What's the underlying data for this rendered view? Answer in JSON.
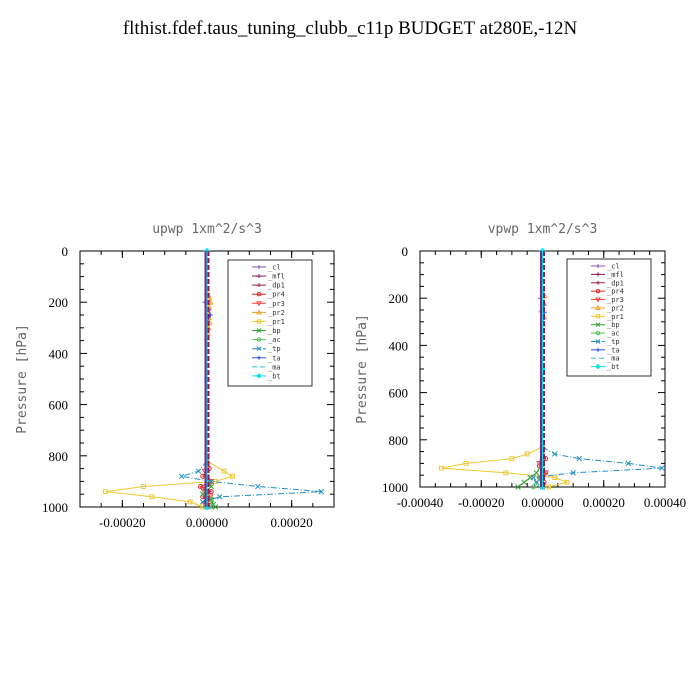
{
  "title": "flthist.fdef.taus_tuning_clubb_c11p  BUDGET at280E,-12N",
  "chart_data": [
    {
      "type": "line",
      "title": "upwp   1xm^2/s^3",
      "xlabel": "",
      "ylabel": "Pressure [hPa]",
      "xlim": [
        -0.0003,
        0.0003
      ],
      "ylim": [
        1000,
        0
      ],
      "xticks": [
        "-0.00020",
        "0.00000",
        "0.00020"
      ],
      "xtick_values": [
        -0.0002,
        0.0,
        0.0002
      ],
      "yticks": [
        "0",
        "200",
        "400",
        "600",
        "800",
        "1000"
      ],
      "ytick_values": [
        0,
        200,
        400,
        600,
        800,
        1000
      ],
      "legend_position": "top-right",
      "series": [
        {
          "name": "_cl",
          "color": "#8a4fb0",
          "marker": "+",
          "dash": "",
          "y": [
            0,
            300,
            600,
            850,
            1000
          ],
          "x": [
            0,
            0,
            0,
            0,
            0
          ]
        },
        {
          "name": "_mfl",
          "color": "#8b1a5a",
          "marker": "+",
          "dash": "",
          "y": [
            0,
            300,
            600,
            850,
            1000
          ],
          "x": [
            0,
            0,
            0,
            0,
            0
          ]
        },
        {
          "name": "_dp1",
          "color": "#a0203a",
          "marker": "+",
          "dash": "",
          "y": [
            0,
            300,
            600,
            850,
            1000
          ],
          "x": [
            0,
            0,
            0,
            0,
            0
          ]
        },
        {
          "name": "_pr4",
          "color": "#e02020",
          "marker": "o",
          "dash": "",
          "y": [
            800,
            850,
            880,
            900,
            920,
            940,
            960,
            980,
            1000
          ],
          "x": [
            0,
            5e-06,
            -1e-05,
            1e-05,
            -1.5e-05,
            1e-05,
            -1e-05,
            5e-06,
            0
          ]
        },
        {
          "name": "_pr3",
          "color": "#ff4040",
          "marker": "v",
          "dash": "",
          "y": [
            800,
            860,
            900,
            930,
            960,
            990,
            1000
          ],
          "x": [
            0,
            -5e-06,
            1e-05,
            -1e-05,
            8e-06,
            -5e-06,
            0
          ]
        },
        {
          "name": "_pr2",
          "color": "#f0a020",
          "marker": "^",
          "dash": "",
          "y": [
            160,
            180,
            200,
            220,
            240,
            260,
            280,
            300,
            320,
            340
          ],
          "x": [
            0,
            5e-06,
            8e-06,
            5e-06,
            0,
            4e-06,
            6e-06,
            3e-06,
            1e-06,
            0
          ]
        },
        {
          "name": "_pr1",
          "color": "#f0c830",
          "marker": "s",
          "dash": "",
          "y": [
            820,
            860,
            880,
            900,
            920,
            940,
            960,
            980,
            1000
          ],
          "x": [
            0,
            4e-05,
            6e-05,
            2e-05,
            -0.00015,
            -0.00024,
            -0.00013,
            -4e-05,
            -1e-05
          ]
        },
        {
          "name": "_bp",
          "color": "#30a030",
          "marker": "x",
          "dash": "",
          "y": [
            880,
            920,
            950,
            970,
            990,
            1000
          ],
          "x": [
            0,
            1e-05,
            -1e-05,
            1e-05,
            1.5e-05,
            2e-05
          ]
        },
        {
          "name": "_ac",
          "color": "#50c050",
          "marker": "o",
          "dash": "",
          "y": [
            900,
            940,
            970,
            1000
          ],
          "x": [
            0,
            -5e-06,
            1e-05,
            1e-05
          ]
        },
        {
          "name": "_tp",
          "color": "#2090c0",
          "marker": "x",
          "dash": "-.",
          "y": [
            820,
            860,
            880,
            900,
            920,
            940,
            960,
            980,
            1000
          ],
          "x": [
            0,
            -2e-05,
            -6e-05,
            1e-05,
            0.00012,
            0.00027,
            3e-05,
            -1e-05,
            0
          ]
        },
        {
          "name": "_ta",
          "color": "#3050e0",
          "marker": "+",
          "dash": "",
          "y": [
            170,
            200,
            230,
            250,
            280
          ],
          "x": [
            0,
            -5e-06,
            4e-06,
            8e-06,
            0
          ]
        },
        {
          "name": "_ma",
          "color": "#30c8d8",
          "marker": "",
          "dash": "-",
          "y": [
            0,
            500,
            1000
          ],
          "x": [
            0,
            0,
            0
          ]
        },
        {
          "name": "_bt",
          "color": "#00e0f0",
          "marker": "D",
          "dash": "",
          "y": [
            0,
            500,
            1000
          ],
          "x": [
            0,
            0,
            0
          ]
        }
      ]
    },
    {
      "type": "line",
      "title": "vpwp   1xm^2/s^3",
      "xlabel": "",
      "ylabel": "Pressure [hPa]",
      "xlim": [
        -0.0004,
        0.0004
      ],
      "ylim": [
        1000,
        0
      ],
      "xticks": [
        "-0.00040",
        "-0.00020",
        "0.00000",
        "0.00020",
        "0.00040"
      ],
      "xtick_values": [
        -0.0004,
        -0.0002,
        0.0,
        0.0002,
        0.0004
      ],
      "yticks": [
        "0",
        "200",
        "400",
        "600",
        "800",
        "1000"
      ],
      "ytick_values": [
        0,
        200,
        400,
        600,
        800,
        1000
      ],
      "legend_position": "top-right",
      "series": [
        {
          "name": "_cl",
          "color": "#8a4fb0",
          "marker": "+",
          "dash": "",
          "y": [
            0,
            300,
            600,
            850,
            1000
          ],
          "x": [
            0,
            0,
            0,
            0,
            0
          ]
        },
        {
          "name": "_mfl",
          "color": "#8b1a5a",
          "marker": "+",
          "dash": "",
          "y": [
            0,
            300,
            600,
            850,
            1000
          ],
          "x": [
            0,
            0,
            0,
            0,
            0
          ]
        },
        {
          "name": "_dp1",
          "color": "#a0203a",
          "marker": "+",
          "dash": "",
          "y": [
            0,
            300,
            600,
            850,
            1000
          ],
          "x": [
            0,
            0,
            0,
            0,
            0
          ]
        },
        {
          "name": "_pr4",
          "color": "#e02020",
          "marker": "o",
          "dash": "",
          "y": [
            840,
            880,
            910,
            940,
            960,
            980,
            1000
          ],
          "x": [
            0,
            1e-05,
            -1e-05,
            1e-05,
            -1e-05,
            5e-06,
            0
          ]
        },
        {
          "name": "_pr3",
          "color": "#ff4040",
          "marker": "v",
          "dash": "",
          "y": [
            840,
            900,
            940,
            970,
            1000
          ],
          "x": [
            0,
            -1e-05,
            1e-05,
            -5e-06,
            0
          ]
        },
        {
          "name": "_pr2",
          "color": "#f0a020",
          "marker": "^",
          "dash": "",
          "y": [
            160,
            190,
            220,
            250,
            280,
            310,
            340
          ],
          "x": [
            0,
            6e-06,
            4e-06,
            -3e-06,
            5e-06,
            2e-06,
            0
          ]
        },
        {
          "name": "_pr1",
          "color": "#f0c830",
          "marker": "s",
          "dash": "",
          "y": [
            830,
            860,
            880,
            900,
            920,
            940,
            960,
            980,
            1000
          ],
          "x": [
            0,
            -5e-05,
            -0.0001,
            -0.00025,
            -0.00033,
            -0.00012,
            4e-05,
            8e-05,
            2e-05
          ]
        },
        {
          "name": "_bp",
          "color": "#30a030",
          "marker": "x",
          "dash": "",
          "y": [
            900,
            940,
            960,
            980,
            1000
          ],
          "x": [
            0,
            -2e-05,
            -4e-05,
            -6e-05,
            -8e-05
          ]
        },
        {
          "name": "_ac",
          "color": "#50c050",
          "marker": "o",
          "dash": "",
          "y": [
            920,
            960,
            990,
            1000
          ],
          "x": [
            0,
            -1e-05,
            -2e-05,
            -3e-05
          ]
        },
        {
          "name": "_tp",
          "color": "#2090c0",
          "marker": "x",
          "dash": "-.",
          "y": [
            830,
            860,
            880,
            900,
            920,
            940,
            960,
            980,
            1000
          ],
          "x": [
            0,
            4e-05,
            0.00012,
            0.00028,
            0.00039,
            0.0001,
            -3e-05,
            -2e-05,
            0
          ]
        },
        {
          "name": "_ta",
          "color": "#3050e0",
          "marker": "+",
          "dash": "",
          "y": [
            170,
            200,
            230,
            260,
            290
          ],
          "x": [
            0,
            -6e-06,
            4e-06,
            6e-06,
            0
          ]
        },
        {
          "name": "_ma",
          "color": "#30c8d8",
          "marker": "",
          "dash": "-",
          "y": [
            0,
            500,
            1000
          ],
          "x": [
            0,
            0,
            0
          ]
        },
        {
          "name": "_bt",
          "color": "#00e0f0",
          "marker": "D",
          "dash": "",
          "y": [
            0,
            500,
            1000
          ],
          "x": [
            0,
            0,
            0
          ]
        }
      ]
    }
  ]
}
